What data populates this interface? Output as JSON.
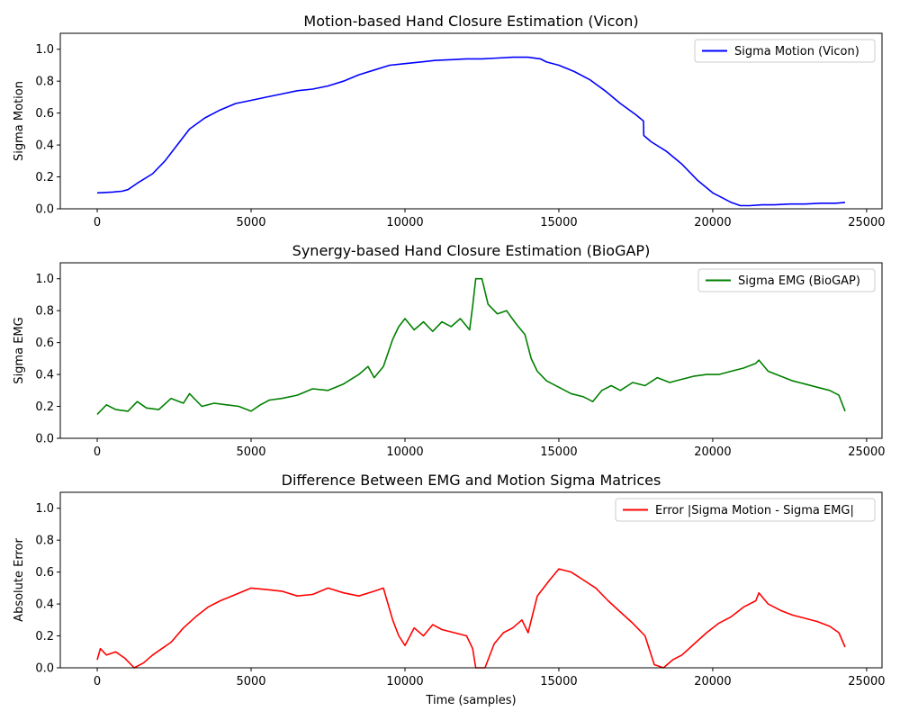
{
  "chart_data": [
    {
      "type": "line",
      "title": "Motion-based Hand Closure Estimation (Vicon)",
      "xlabel": "",
      "ylabel": "Sigma Motion",
      "xlim": [
        -1200,
        25500
      ],
      "ylim": [
        0,
        1.1
      ],
      "xticks": [
        0,
        5000,
        10000,
        15000,
        20000,
        25000
      ],
      "yticks": [
        0.0,
        0.2,
        0.4,
        0.6,
        0.8,
        1.0
      ],
      "grid": false,
      "legend_position": "upper right",
      "series": [
        {
          "name": "Sigma Motion (Vicon)",
          "color": "#0000ff",
          "x": [
            0,
            500,
            800,
            1000,
            1300,
            1800,
            2200,
            2600,
            3000,
            3500,
            4000,
            4500,
            5000,
            5500,
            6000,
            6500,
            7000,
            7500,
            8000,
            8500,
            9000,
            9500,
            10000,
            10500,
            11000,
            11500,
            12000,
            12500,
            13000,
            13500,
            14000,
            14400,
            14600,
            15000,
            15500,
            16000,
            16500,
            17000,
            17500,
            17750,
            17760,
            18000,
            18500,
            19000,
            19500,
            20000,
            20300,
            20600,
            20900,
            21200,
            21600,
            22000,
            22500,
            23000,
            23500,
            24000,
            24300
          ],
          "y": [
            0.1,
            0.105,
            0.11,
            0.12,
            0.16,
            0.22,
            0.3,
            0.4,
            0.5,
            0.57,
            0.62,
            0.66,
            0.68,
            0.7,
            0.72,
            0.74,
            0.75,
            0.77,
            0.8,
            0.84,
            0.87,
            0.9,
            0.91,
            0.92,
            0.93,
            0.935,
            0.94,
            0.94,
            0.945,
            0.95,
            0.95,
            0.94,
            0.92,
            0.9,
            0.86,
            0.81,
            0.74,
            0.66,
            0.59,
            0.55,
            0.46,
            0.42,
            0.36,
            0.28,
            0.18,
            0.1,
            0.07,
            0.04,
            0.02,
            0.02,
            0.025,
            0.025,
            0.03,
            0.03,
            0.035,
            0.035,
            0.04
          ]
        }
      ]
    },
    {
      "type": "line",
      "title": "Synergy-based Hand Closure Estimation (BioGAP)",
      "xlabel": "",
      "ylabel": "Sigma EMG",
      "xlim": [
        -1200,
        25500
      ],
      "ylim": [
        0,
        1.1
      ],
      "xticks": [
        0,
        5000,
        10000,
        15000,
        20000,
        25000
      ],
      "yticks": [
        0.0,
        0.2,
        0.4,
        0.6,
        0.8,
        1.0
      ],
      "grid": false,
      "legend_position": "upper right",
      "series": [
        {
          "name": "Sigma EMG (BioGAP)",
          "color": "#008000",
          "x": [
            0,
            300,
            600,
            1000,
            1300,
            1600,
            2000,
            2400,
            2800,
            3000,
            3400,
            3800,
            4200,
            4600,
            5000,
            5300,
            5600,
            6000,
            6500,
            7000,
            7500,
            8000,
            8500,
            8800,
            9000,
            9300,
            9600,
            9800,
            10000,
            10300,
            10600,
            10900,
            11200,
            11500,
            11800,
            12100,
            12200,
            12300,
            12500,
            12700,
            13000,
            13300,
            13600,
            13900,
            14100,
            14300,
            14600,
            15000,
            15400,
            15800,
            16100,
            16400,
            16700,
            17000,
            17400,
            17800,
            18200,
            18600,
            19000,
            19400,
            19800,
            20200,
            20600,
            21000,
            21400,
            21500,
            21800,
            22200,
            22600,
            23000,
            23400,
            23800,
            24100,
            24300
          ],
          "y": [
            0.15,
            0.21,
            0.18,
            0.17,
            0.23,
            0.19,
            0.18,
            0.25,
            0.22,
            0.28,
            0.2,
            0.22,
            0.21,
            0.2,
            0.17,
            0.21,
            0.24,
            0.25,
            0.27,
            0.31,
            0.3,
            0.34,
            0.4,
            0.45,
            0.38,
            0.45,
            0.62,
            0.7,
            0.75,
            0.68,
            0.73,
            0.67,
            0.73,
            0.7,
            0.75,
            0.68,
            0.83,
            1.0,
            1.0,
            0.84,
            0.78,
            0.8,
            0.72,
            0.65,
            0.5,
            0.42,
            0.36,
            0.32,
            0.28,
            0.26,
            0.23,
            0.3,
            0.33,
            0.3,
            0.35,
            0.33,
            0.38,
            0.35,
            0.37,
            0.39,
            0.4,
            0.4,
            0.42,
            0.44,
            0.47,
            0.49,
            0.42,
            0.39,
            0.36,
            0.34,
            0.32,
            0.3,
            0.27,
            0.17
          ]
        }
      ]
    },
    {
      "type": "line",
      "title": "Difference Between EMG and Motion Sigma Matrices",
      "xlabel": "Time (samples)",
      "ylabel": "Absolute Error",
      "xlim": [
        -1200,
        25500
      ],
      "ylim": [
        0,
        1.1
      ],
      "xticks": [
        0,
        5000,
        10000,
        15000,
        20000,
        25000
      ],
      "yticks": [
        0.0,
        0.2,
        0.4,
        0.6,
        0.8,
        1.0
      ],
      "grid": false,
      "legend_position": "upper right",
      "series": [
        {
          "name": "Error |Sigma Motion - Sigma EMG|",
          "color": "#ff0000",
          "x": [
            0,
            100,
            300,
            600,
            900,
            1200,
            1500,
            1800,
            2100,
            2400,
            2800,
            3200,
            3600,
            4000,
            4500,
            5000,
            5500,
            6000,
            6500,
            7000,
            7500,
            8000,
            8500,
            9000,
            9300,
            9600,
            9800,
            10000,
            10300,
            10600,
            10900,
            11200,
            11600,
            12000,
            12200,
            12300,
            12600,
            12900,
            13200,
            13500,
            13800,
            14000,
            14300,
            14700,
            15000,
            15400,
            15800,
            16200,
            16600,
            17000,
            17400,
            17800,
            18100,
            18400,
            18700,
            19000,
            19400,
            19800,
            20200,
            20600,
            21000,
            21400,
            21500,
            21800,
            22200,
            22600,
            23000,
            23400,
            23800,
            24100,
            24300
          ],
          "y": [
            0.05,
            0.12,
            0.08,
            0.1,
            0.06,
            0.0,
            0.03,
            0.08,
            0.12,
            0.16,
            0.25,
            0.32,
            0.38,
            0.42,
            0.46,
            0.5,
            0.49,
            0.48,
            0.45,
            0.46,
            0.5,
            0.47,
            0.45,
            0.48,
            0.5,
            0.3,
            0.2,
            0.14,
            0.25,
            0.2,
            0.27,
            0.24,
            0.22,
            0.2,
            0.12,
            0.0,
            0.0,
            0.15,
            0.22,
            0.25,
            0.3,
            0.22,
            0.45,
            0.55,
            0.62,
            0.6,
            0.55,
            0.5,
            0.42,
            0.35,
            0.28,
            0.2,
            0.02,
            0.0,
            0.05,
            0.08,
            0.15,
            0.22,
            0.28,
            0.32,
            0.38,
            0.42,
            0.47,
            0.4,
            0.36,
            0.33,
            0.31,
            0.29,
            0.26,
            0.22,
            0.13
          ]
        }
      ]
    }
  ]
}
